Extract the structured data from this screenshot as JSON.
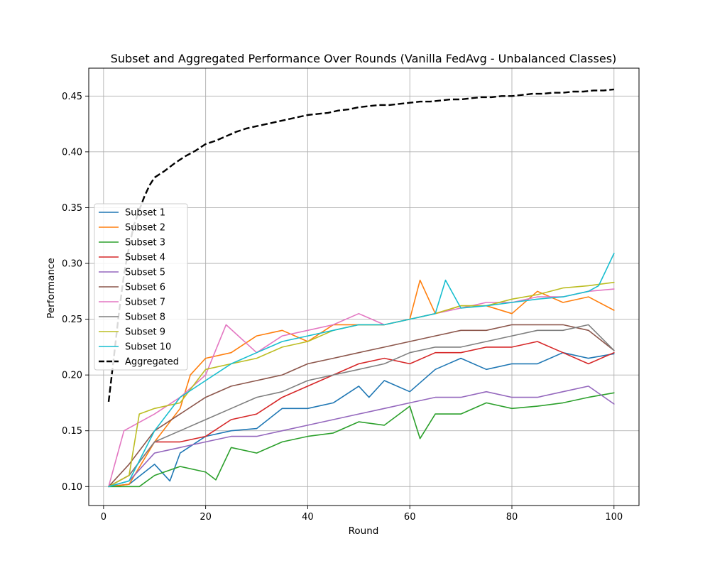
{
  "chart_data": {
    "type": "line",
    "title": "Subset and Aggregated Performance Over Rounds (Vanilla FedAvg - Unbalanced Classes)",
    "xlabel": "Round",
    "ylabel": "Performance",
    "xlim": [
      -2.9,
      104.9
    ],
    "ylim": [
      0.083,
      0.475
    ],
    "xticks": [
      0,
      20,
      40,
      60,
      80,
      100
    ],
    "yticks": [
      0.1,
      0.15,
      0.2,
      0.25,
      0.3,
      0.35,
      0.4,
      0.45
    ],
    "grid": true,
    "legend_position": "center-left",
    "series": [
      {
        "name": "Subset 1",
        "color": "#1f77b4",
        "dash": "solid",
        "x": [
          1,
          5,
          10,
          13,
          15,
          20,
          25,
          30,
          35,
          40,
          45,
          50,
          52,
          55,
          60,
          65,
          70,
          75,
          80,
          85,
          90,
          95,
          100
        ],
        "values": [
          0.1,
          0.102,
          0.12,
          0.105,
          0.13,
          0.145,
          0.15,
          0.152,
          0.17,
          0.17,
          0.175,
          0.19,
          0.18,
          0.195,
          0.185,
          0.205,
          0.215,
          0.205,
          0.21,
          0.21,
          0.22,
          0.215,
          0.219
        ]
      },
      {
        "name": "Subset 2",
        "color": "#ff7f0e",
        "dash": "solid",
        "x": [
          1,
          5,
          10,
          15,
          17,
          20,
          25,
          30,
          35,
          40,
          45,
          50,
          55,
          60,
          62,
          65,
          70,
          75,
          80,
          85,
          90,
          95,
          100
        ],
        "values": [
          0.1,
          0.102,
          0.14,
          0.17,
          0.2,
          0.215,
          0.22,
          0.235,
          0.24,
          0.23,
          0.245,
          0.245,
          0.245,
          0.25,
          0.285,
          0.255,
          0.262,
          0.262,
          0.255,
          0.275,
          0.265,
          0.27,
          0.258
        ]
      },
      {
        "name": "Subset 3",
        "color": "#2ca02c",
        "dash": "solid",
        "x": [
          1,
          7,
          10,
          15,
          20,
          22,
          25,
          30,
          35,
          40,
          45,
          50,
          55,
          60,
          62,
          65,
          70,
          75,
          80,
          85,
          90,
          95,
          100
        ],
        "values": [
          0.1,
          0.1,
          0.11,
          0.118,
          0.113,
          0.106,
          0.135,
          0.13,
          0.14,
          0.145,
          0.148,
          0.158,
          0.155,
          0.172,
          0.143,
          0.165,
          0.165,
          0.175,
          0.17,
          0.172,
          0.175,
          0.18,
          0.184
        ]
      },
      {
        "name": "Subset 4",
        "color": "#d62728",
        "dash": "solid",
        "x": [
          1,
          5,
          10,
          15,
          20,
          25,
          30,
          35,
          40,
          45,
          50,
          55,
          60,
          65,
          70,
          75,
          80,
          85,
          90,
          95,
          100
        ],
        "values": [
          0.1,
          0.11,
          0.14,
          0.14,
          0.145,
          0.16,
          0.165,
          0.18,
          0.19,
          0.2,
          0.21,
          0.215,
          0.21,
          0.22,
          0.22,
          0.225,
          0.225,
          0.23,
          0.22,
          0.21,
          0.22
        ]
      },
      {
        "name": "Subset 5",
        "color": "#9467bd",
        "dash": "solid",
        "x": [
          1,
          5,
          10,
          15,
          20,
          25,
          30,
          35,
          40,
          45,
          50,
          55,
          60,
          65,
          70,
          75,
          80,
          85,
          90,
          95,
          100
        ],
        "values": [
          0.1,
          0.105,
          0.13,
          0.135,
          0.14,
          0.145,
          0.145,
          0.15,
          0.155,
          0.16,
          0.165,
          0.17,
          0.175,
          0.18,
          0.18,
          0.185,
          0.18,
          0.18,
          0.185,
          0.19,
          0.174
        ]
      },
      {
        "name": "Subset 6",
        "color": "#8c564b",
        "dash": "solid",
        "x": [
          1,
          5,
          10,
          15,
          20,
          25,
          30,
          35,
          40,
          45,
          50,
          55,
          60,
          65,
          70,
          75,
          80,
          85,
          90,
          95,
          100
        ],
        "values": [
          0.1,
          0.12,
          0.15,
          0.165,
          0.18,
          0.19,
          0.195,
          0.2,
          0.21,
          0.215,
          0.22,
          0.225,
          0.23,
          0.235,
          0.24,
          0.24,
          0.245,
          0.245,
          0.245,
          0.24,
          0.222
        ]
      },
      {
        "name": "Subset 7",
        "color": "#e377c2",
        "dash": "solid",
        "x": [
          1,
          4,
          10,
          15,
          20,
          24,
          30,
          35,
          40,
          45,
          50,
          55,
          60,
          65,
          70,
          75,
          80,
          85,
          90,
          95,
          100
        ],
        "values": [
          0.1,
          0.15,
          0.165,
          0.18,
          0.2,
          0.245,
          0.22,
          0.235,
          0.24,
          0.245,
          0.255,
          0.245,
          0.25,
          0.255,
          0.26,
          0.265,
          0.265,
          0.27,
          0.27,
          0.275,
          0.277
        ]
      },
      {
        "name": "Subset 8",
        "color": "#7f7f7f",
        "dash": "solid",
        "x": [
          1,
          5,
          10,
          15,
          20,
          25,
          30,
          35,
          40,
          45,
          50,
          55,
          60,
          65,
          70,
          75,
          80,
          85,
          90,
          95,
          100
        ],
        "values": [
          0.1,
          0.11,
          0.14,
          0.15,
          0.16,
          0.17,
          0.18,
          0.185,
          0.195,
          0.2,
          0.205,
          0.21,
          0.22,
          0.225,
          0.225,
          0.23,
          0.235,
          0.24,
          0.24,
          0.245,
          0.222
        ]
      },
      {
        "name": "Subset 9",
        "color": "#bcbd22",
        "dash": "solid",
        "x": [
          1,
          5,
          7,
          10,
          15,
          20,
          25,
          30,
          35,
          40,
          45,
          50,
          55,
          60,
          65,
          70,
          75,
          80,
          85,
          90,
          95,
          100
        ],
        "values": [
          0.1,
          0.11,
          0.165,
          0.17,
          0.175,
          0.205,
          0.21,
          0.215,
          0.225,
          0.23,
          0.24,
          0.245,
          0.245,
          0.25,
          0.255,
          0.262,
          0.262,
          0.268,
          0.272,
          0.278,
          0.28,
          0.283
        ]
      },
      {
        "name": "Subset 10",
        "color": "#17becf",
        "dash": "solid",
        "x": [
          1,
          5,
          10,
          15,
          20,
          25,
          30,
          35,
          40,
          45,
          50,
          55,
          60,
          65,
          67,
          70,
          75,
          80,
          85,
          90,
          95,
          97,
          100
        ],
        "values": [
          0.1,
          0.105,
          0.15,
          0.18,
          0.195,
          0.21,
          0.22,
          0.23,
          0.235,
          0.24,
          0.245,
          0.245,
          0.25,
          0.255,
          0.285,
          0.26,
          0.262,
          0.265,
          0.268,
          0.27,
          0.275,
          0.28,
          0.309
        ]
      },
      {
        "name": "Aggregated",
        "color": "#000000",
        "dash": "dashed",
        "x": [
          1,
          2,
          3,
          4,
          5,
          6,
          7,
          8,
          9,
          10,
          12,
          14,
          16,
          18,
          20,
          22,
          24,
          26,
          28,
          30,
          32,
          34,
          36,
          38,
          40,
          42,
          44,
          46,
          48,
          50,
          52,
          54,
          56,
          58,
          60,
          62,
          64,
          66,
          68,
          70,
          72,
          74,
          76,
          78,
          80,
          82,
          84,
          86,
          88,
          90,
          92,
          94,
          96,
          98,
          100
        ],
        "values": [
          0.176,
          0.215,
          0.255,
          0.29,
          0.315,
          0.335,
          0.348,
          0.36,
          0.37,
          0.377,
          0.383,
          0.39,
          0.396,
          0.401,
          0.407,
          0.41,
          0.414,
          0.418,
          0.421,
          0.423,
          0.425,
          0.427,
          0.429,
          0.431,
          0.433,
          0.434,
          0.435,
          0.437,
          0.438,
          0.44,
          0.441,
          0.442,
          0.442,
          0.443,
          0.444,
          0.445,
          0.445,
          0.446,
          0.447,
          0.447,
          0.448,
          0.449,
          0.449,
          0.45,
          0.45,
          0.451,
          0.452,
          0.452,
          0.453,
          0.453,
          0.454,
          0.454,
          0.455,
          0.455,
          0.456
        ]
      }
    ]
  }
}
